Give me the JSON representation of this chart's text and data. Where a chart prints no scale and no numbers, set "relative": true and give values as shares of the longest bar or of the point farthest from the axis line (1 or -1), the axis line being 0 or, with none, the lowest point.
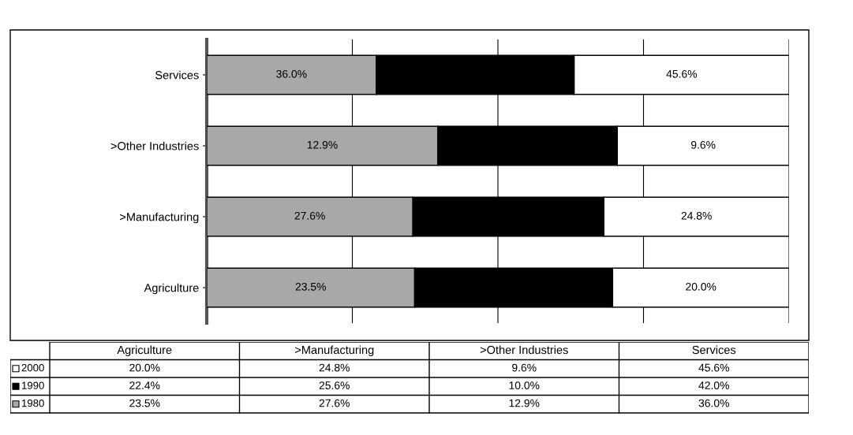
{
  "chart_data": [
    {
      "type": "bar",
      "orientation": "horizontal",
      "stacked": true,
      "relative": true,
      "grid": "x",
      "categories": [
        "Services",
        ">Other Industries",
        ">Manufacturing",
        "Agriculture"
      ],
      "series": [
        {
          "color": "#a8a8a8",
          "values": [
            0.291,
            0.397,
            0.354,
            0.357
          ]
        },
        {
          "color": "#000000",
          "values": [
            0.34,
            0.308,
            0.328,
            0.34
          ]
        },
        {
          "color": "#ffffff",
          "values": [
            0.369,
            0.295,
            0.318,
            0.303
          ]
        }
      ],
      "annotations": [
        "36.0%",
        "12.9%",
        "27.6%",
        "23.5%",
        "45.6%",
        "9.6%",
        "24.8%",
        "20.0%"
      ]
    },
    {
      "type": "other",
      "categories": [
        "Agriculture",
        ">Manufacturing",
        ">Other Industries",
        "Services"
      ],
      "series": [
        {
          "name": "2000",
          "color": "#ffffff",
          "values": [
            20.0,
            24.8,
            9.6,
            45.6
          ],
          "value_labels": [
            "20.0%",
            "24.8%",
            "9.6%",
            "45.6%"
          ]
        },
        {
          "name": "1990",
          "color": "#000000",
          "values": [
            22.4,
            25.6,
            10.0,
            42.0
          ],
          "value_labels": [
            "22.4%",
            "25.6%",
            "10.0%",
            "42.0%"
          ]
        },
        {
          "name": "1980",
          "color": "#a8a8a8",
          "values": [
            23.5,
            27.6,
            12.9,
            36.0
          ],
          "value_labels": [
            "23.5%",
            "27.6%",
            "12.9%",
            "36.0%"
          ]
        }
      ]
    }
  ]
}
